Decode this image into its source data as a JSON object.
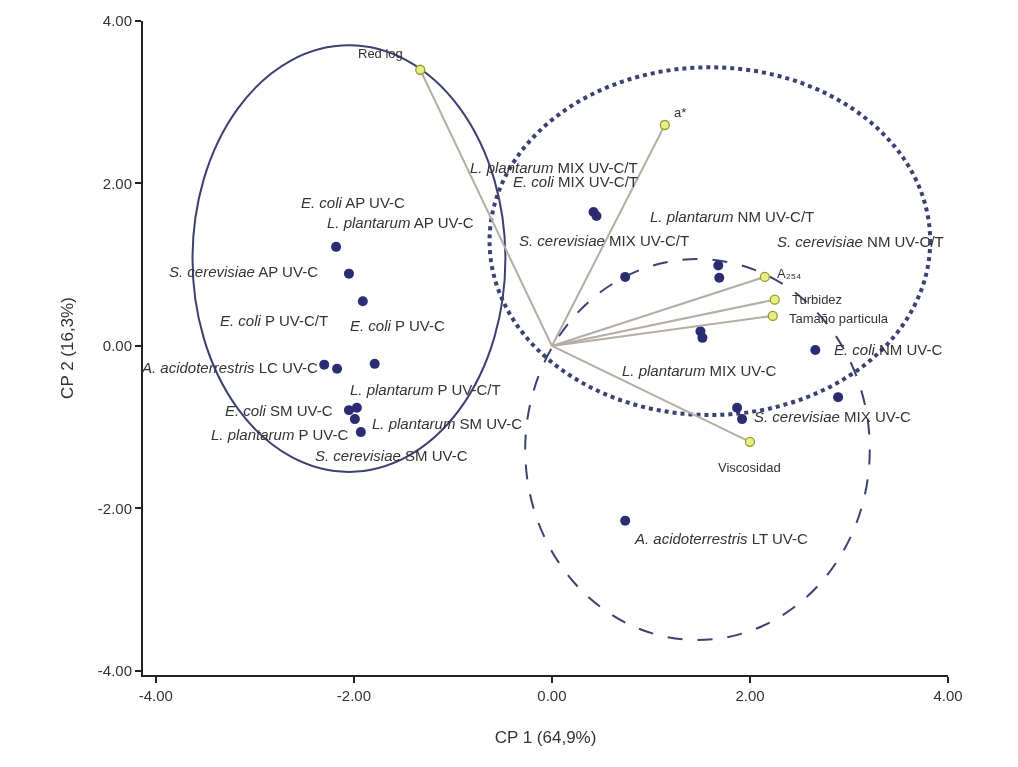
{
  "chart_data": {
    "type": "scatter",
    "xlabel": "CP 1 (64,9%)",
    "ylabel": "CP 2 (16,3%)",
    "xlim": [
      -4.13,
      4.0
    ],
    "ylim": [
      -4.05,
      4.0
    ],
    "xticks": [
      {
        "value": -4,
        "label": "-4.00"
      },
      {
        "value": -2,
        "label": "-2.00"
      },
      {
        "value": 0,
        "label": "0.00"
      },
      {
        "value": 2,
        "label": "2.00"
      },
      {
        "value": 4,
        "label": "4.00"
      }
    ],
    "yticks": [
      {
        "value": -4,
        "label": "-4.00"
      },
      {
        "value": -2,
        "label": "-2.00"
      },
      {
        "value": 0,
        "label": "0.00"
      },
      {
        "value": 2,
        "label": "2.00"
      },
      {
        "value": 4,
        "label": "4.00"
      }
    ],
    "grid": false,
    "marker": "circle",
    "series": [
      {
        "color": "#2b2d72",
        "x": [
          -2.18,
          -2.05,
          -1.91,
          -1.79,
          -2.3,
          -2.17,
          -2.05,
          -1.97,
          -1.99,
          -1.93,
          0.42,
          0.45,
          0.74,
          1.68,
          1.69,
          1.5,
          1.52,
          2.66,
          2.89,
          1.87,
          1.92,
          0.74
        ],
        "values": [
          1.22,
          0.89,
          0.55,
          -0.22,
          -0.23,
          -0.28,
          -0.79,
          -0.76,
          -0.9,
          -1.06,
          1.65,
          1.6,
          0.85,
          0.99,
          0.84,
          0.18,
          0.1,
          -0.05,
          -0.63,
          -0.76,
          -0.9,
          -2.15
        ]
      },
      {
        "type": "line",
        "marker": "none",
        "color": "#b3ada3",
        "x": [
          0,
          -1.33,
          null,
          0,
          1.14,
          null,
          0,
          2.15,
          null,
          0,
          2.25,
          null,
          0,
          2.23,
          null,
          0,
          2.0
        ],
        "values": [
          0,
          3.4,
          null,
          0,
          2.72,
          null,
          0,
          0.85,
          null,
          0,
          0.57,
          null,
          0,
          0.37,
          null,
          0,
          -1.18
        ]
      },
      {
        "color": "#e6ee8a",
        "x": [
          -1.33,
          1.14,
          2.15,
          2.25,
          2.23,
          2.0
        ],
        "values": [
          3.4,
          2.72,
          0.85,
          0.57,
          0.37,
          -1.18
        ]
      }
    ],
    "annotations": [
      "E. coli AP UV-C",
      "L. plantarum AP UV-C",
      {
        "text": "S. cerevisiae AP UV-C",
        "x": -2.05,
        "y": 0.89
      },
      {
        "text": "E. coli P UV-C/T",
        "x": -2.17,
        "y": -0.28
      },
      {
        "text": "E. coli P UV-C",
        "x": -1.79,
        "y": -0.22
      },
      {
        "text": "A. acidoterrestris LC UV-C",
        "x": -2.3,
        "y": -0.23
      },
      {
        "text": "L. plantarum P UV-C/T",
        "x": -1.97,
        "y": -0.76
      },
      {
        "text": "E. coli SM UV-C",
        "x": -2.05,
        "y": -0.79
      },
      {
        "text": "L. plantarum SM UV-C",
        "x": -1.99,
        "y": -0.9
      },
      {
        "text": "L. plantarum P UV-C",
        "x": -1.93,
        "y": -1.06
      },
      {
        "text": "S. cerevisiae SM UV-C",
        "x": -1.93,
        "y": -1.06
      },
      "L. plantarum MIX UV-C/T",
      {
        "text": "E. coli MIX UV-C/T",
        "x": 0.45,
        "y": 1.6
      },
      {
        "text": "S. cerevisiae MIX UV-C/T",
        "x": 0.74,
        "y": 0.85
      },
      {
        "text": "L. plantarum NM UV-C/T",
        "x": 1.68,
        "y": 0.99
      },
      "S. cerevisiae NM UV-C/T",
      {
        "text": "L. plantarum MIX UV-C",
        "x": 1.5,
        "y": 0.18
      },
      {
        "text": "E. coli NM UV-C",
        "x": 2.66,
        "y": -0.05
      },
      {
        "text": "S. cerevisiae MIX UV-C",
        "x": 1.92,
        "y": -0.9
      },
      {
        "text": "A. acidoterrestris LT UV-C",
        "x": 0.74,
        "y": -2.15
      },
      {
        "text": "Red log",
        "x": -1.33,
        "y": 3.4
      },
      {
        "text": "a*",
        "x": 1.14,
        "y": 2.72
      },
      {
        "text": "A₂₅₄",
        "x": 2.15,
        "y": 0.85
      },
      {
        "text": "Turbidez",
        "x": 2.25,
        "y": 0.57
      },
      {
        "text": "Tamaño particula",
        "x": 2.23,
        "y": 0.37
      },
      {
        "text": "Viscosidad",
        "x": 2.0,
        "y": -1.18
      }
    ]
  }
}
